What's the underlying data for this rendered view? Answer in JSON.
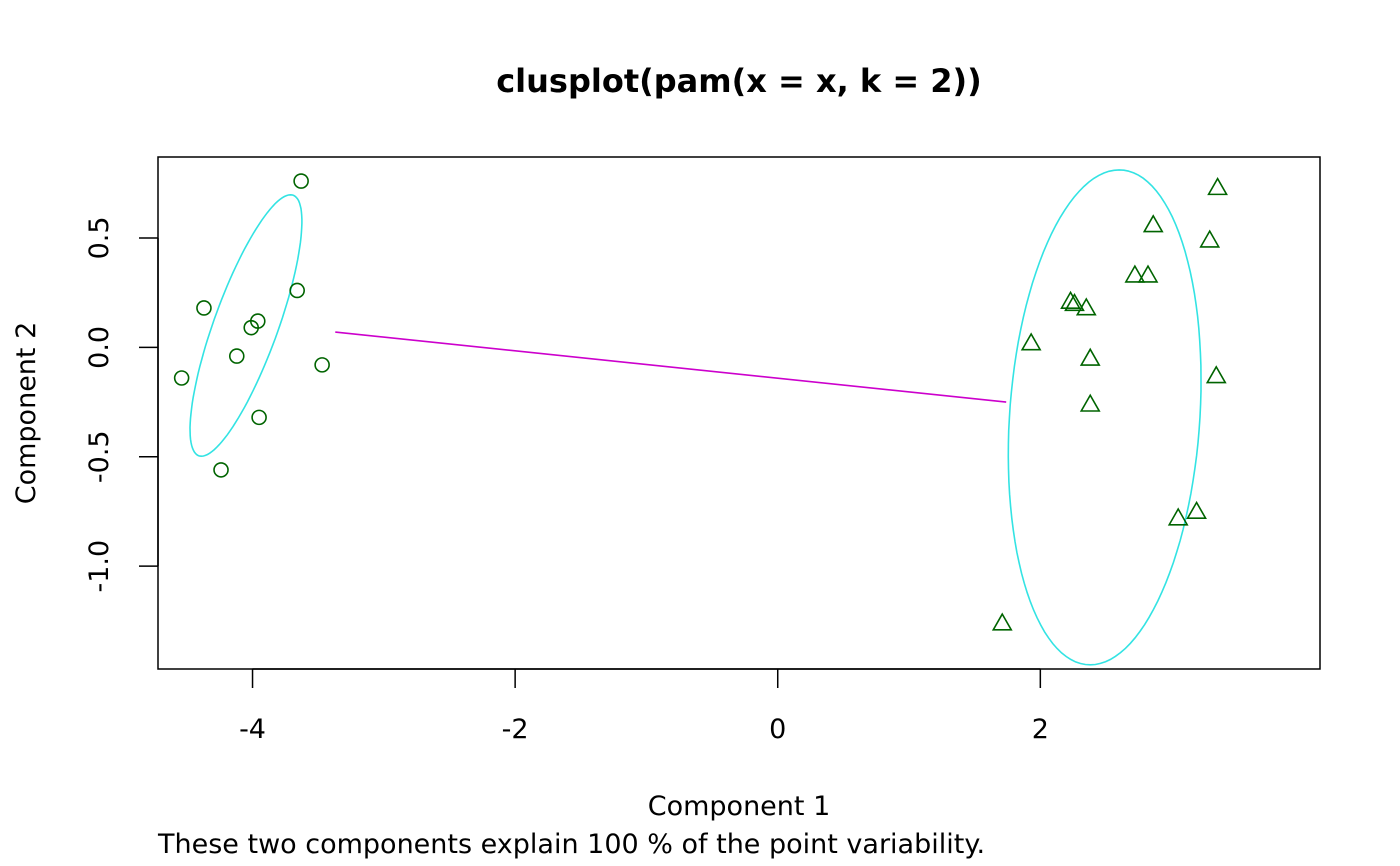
{
  "chart_data": {
    "type": "scatter",
    "title": "clusplot(pam(x = x, k = 2))",
    "xlabel": "Component 1",
    "ylabel": "Component 2",
    "subtitle": "These two components explain 100 % of the point variability.",
    "xlim": [
      -4.72,
      4.13
    ],
    "ylim": [
      -1.47,
      0.87
    ],
    "x_ticks": [
      -4,
      -2,
      0,
      2
    ],
    "x_tick_labels": [
      "-4",
      "-2",
      "0",
      "2"
    ],
    "y_ticks": [
      0.5,
      0.0,
      -0.5,
      -1.0
    ],
    "y_tick_labels": [
      "0.5",
      "0.0",
      "-0.5",
      "-1.0"
    ],
    "grid": false,
    "colors": {
      "points": "#006400",
      "ellipse": "#33E3E3",
      "connector": "#CC00CC",
      "frame": "#000000"
    },
    "series": [
      {
        "marker": "circle",
        "x": [
          -3.63,
          -4.37,
          -3.66,
          -3.96,
          -4.01,
          -4.12,
          -3.47,
          -4.54,
          -3.95,
          -4.24
        ],
        "y": [
          0.76,
          0.18,
          0.26,
          0.12,
          0.09,
          -0.04,
          -0.08,
          -0.14,
          -0.32,
          -0.56
        ]
      },
      {
        "marker": "triangle",
        "x": [
          3.35,
          2.86,
          3.29,
          2.72,
          2.82,
          2.23,
          2.26,
          2.35,
          1.93,
          2.38,
          3.34,
          2.38,
          3.19,
          3.05,
          1.71
        ],
        "y": [
          0.73,
          0.56,
          0.49,
          0.33,
          0.33,
          0.21,
          0.2,
          0.18,
          0.02,
          -0.05,
          -0.13,
          -0.26,
          -0.75,
          -0.78,
          -1.26
        ]
      }
    ],
    "ellipses": [
      {
        "cx": -4.05,
        "cy": 0.1,
        "rx": 0.7,
        "ry": 0.22,
        "angle_deg": 56.7
      },
      {
        "cx": 2.49,
        "cy": -0.32,
        "rx": 1.14,
        "ry": 0.72,
        "angle_deg": 80.7
      }
    ],
    "connector": {
      "x1": -3.37,
      "y1": 0.07,
      "x2": 1.74,
      "y2": -0.25
    }
  }
}
